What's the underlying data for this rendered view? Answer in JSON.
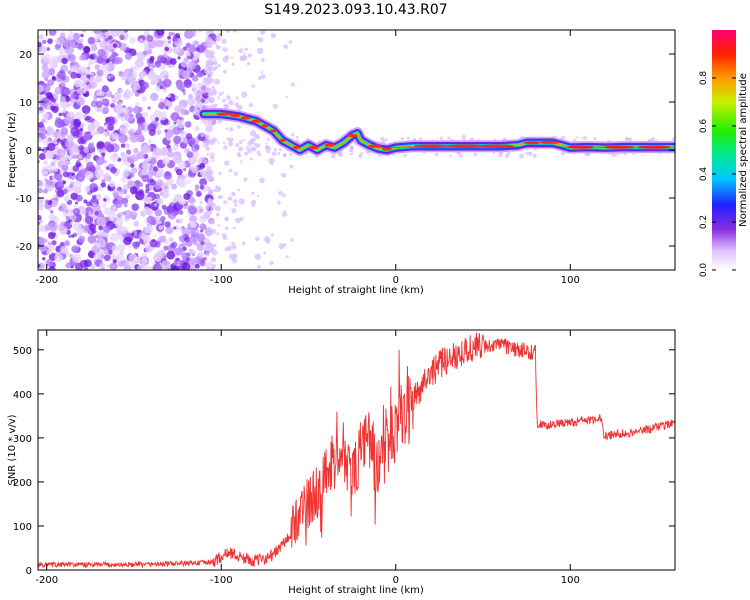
{
  "title": "S149.2023.093.10.43.R07",
  "chart_data": [
    {
      "type": "heatmap",
      "title": "",
      "xlabel": "Height of straight line (km)",
      "ylabel": "Frequency (Hz)",
      "xlim": [
        -205,
        160
      ],
      "ylim": [
        -25,
        25
      ],
      "xticks": [
        -200,
        -100,
        0,
        100
      ],
      "yticks": [
        -20,
        -10,
        0,
        10,
        20
      ],
      "colorbar": {
        "label": "Normalized spectral amplitude",
        "ticks": [
          0.0,
          0.2,
          0.4,
          0.6,
          0.8
        ],
        "range": [
          0,
          1
        ]
      },
      "ridge": {
        "x": [
          -110,
          -100,
          -90,
          -80,
          -70,
          -65,
          -60,
          -55,
          -50,
          -45,
          -40,
          -35,
          -30,
          -25,
          -22,
          -20,
          -15,
          -10,
          -5,
          0,
          10,
          20,
          40,
          60,
          70,
          75,
          80,
          90,
          95,
          100,
          110,
          120,
          130,
          140,
          150,
          160
        ],
        "y": [
          7.5,
          7.5,
          7,
          6,
          4,
          2,
          1,
          0,
          1,
          0,
          1,
          0.5,
          1.5,
          3,
          3.5,
          2,
          1,
          0.3,
          0,
          0.5,
          0.8,
          0.8,
          0.8,
          0.8,
          1,
          1.5,
          1.5,
          1.5,
          1.0,
          0.5,
          0.6,
          0.5,
          0.6,
          0.6,
          0.6,
          0.6
        ]
      }
    },
    {
      "type": "line",
      "title": "",
      "xlabel": "Height of straight line (km)",
      "ylabel": "SNR (10 * v/v)",
      "xlim": [
        -205,
        160
      ],
      "ylim": [
        0,
        545
      ],
      "xticks": [
        -200,
        -100,
        0,
        100
      ],
      "yticks": [
        0,
        100,
        200,
        300,
        400,
        500
      ],
      "series": [
        {
          "name": "SNR",
          "color": "#ee3333",
          "x": [
            -205,
            -150,
            -120,
            -105,
            -100,
            -95,
            -90,
            -80,
            -70,
            -60,
            -55,
            -50,
            -45,
            -40,
            -35,
            -30,
            -25,
            -20,
            -15,
            -10,
            -5,
            0,
            5,
            10,
            20,
            30,
            40,
            50,
            60,
            70,
            80,
            81,
            90,
            100,
            110,
            118,
            119,
            130,
            140,
            150,
            160
          ],
          "y": [
            12,
            12,
            15,
            18,
            30,
            40,
            30,
            20,
            35,
            80,
            140,
            150,
            180,
            210,
            240,
            270,
            220,
            260,
            300,
            210,
            280,
            330,
            370,
            390,
            450,
            480,
            500,
            510,
            510,
            500,
            495,
            330,
            330,
            335,
            340,
            345,
            305,
            310,
            315,
            325,
            335
          ]
        }
      ]
    }
  ]
}
